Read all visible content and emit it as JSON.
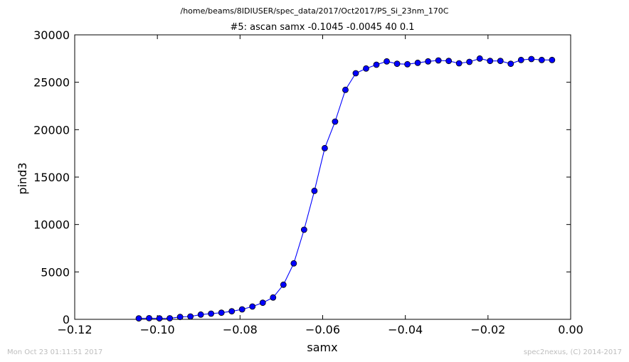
{
  "footer": {
    "timestamp": "Mon Oct 23 01:11:51 2017",
    "credit": "spec2nexus, (C) 2014-2017"
  },
  "chart_data": {
    "type": "line",
    "suptitle": "/home/beams/8IDIUSER/spec_data/2017/Oct2017/PS_Si_23nm_170C",
    "title": "#5: ascan  samx -0.1045 -0.0045  40 0.1",
    "xlabel": "samx",
    "ylabel": "pind3",
    "xlim": [
      -0.12,
      0.0
    ],
    "ylim": [
      0,
      30000
    ],
    "xticks": [
      -0.12,
      -0.1,
      -0.08,
      -0.06,
      -0.04,
      -0.02,
      0.0
    ],
    "xtick_labels": [
      "−0.12",
      "−0.10",
      "−0.08",
      "−0.06",
      "−0.04",
      "−0.02",
      "0.00"
    ],
    "yticks": [
      0,
      5000,
      10000,
      15000,
      20000,
      25000,
      30000
    ],
    "ytick_labels": [
      "0",
      "5000",
      "10000",
      "15000",
      "20000",
      "25000",
      "30000"
    ],
    "grid": false,
    "series": [
      {
        "color": "#0000ff",
        "marker": "circle",
        "x": [
          -0.1045,
          -0.102,
          -0.0995,
          -0.097,
          -0.0945,
          -0.092,
          -0.0895,
          -0.087,
          -0.0845,
          -0.082,
          -0.0795,
          -0.077,
          -0.0745,
          -0.072,
          -0.0695,
          -0.067,
          -0.0645,
          -0.062,
          -0.0595,
          -0.057,
          -0.0545,
          -0.052,
          -0.0495,
          -0.047,
          -0.0445,
          -0.042,
          -0.0395,
          -0.037,
          -0.0345,
          -0.032,
          -0.0295,
          -0.027,
          -0.0245,
          -0.022,
          -0.0195,
          -0.017,
          -0.0145,
          -0.012,
          -0.0095,
          -0.007,
          -0.0045
        ],
        "y": [
          100,
          120,
          100,
          110,
          250,
          300,
          500,
          600,
          700,
          850,
          1050,
          1350,
          1750,
          2300,
          3650,
          5900,
          9450,
          13550,
          18050,
          20850,
          24200,
          25950,
          26450,
          26850,
          27200,
          26950,
          26900,
          27050,
          27200,
          27300,
          27250,
          27000,
          27150,
          27500,
          27250,
          27250,
          26950,
          27350,
          27450,
          27350,
          27350
        ]
      }
    ]
  }
}
